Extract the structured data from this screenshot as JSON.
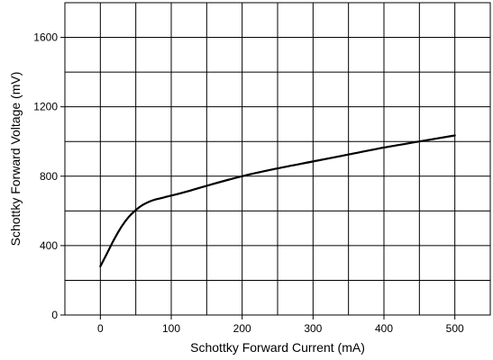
{
  "chart_data": {
    "type": "line",
    "title": "",
    "xlabel": "Schottky Forward Current (mA)",
    "ylabel": "Schottky Forward Voltage (mV)",
    "xlim": [
      -50,
      550
    ],
    "ylim": [
      0,
      1800
    ],
    "xticks": [
      0,
      100,
      200,
      300,
      400,
      500
    ],
    "yticks": [
      0,
      400,
      800,
      1200,
      1600
    ],
    "x_gridlines": [
      -50,
      0,
      50,
      100,
      150,
      200,
      250,
      300,
      350,
      400,
      450,
      500,
      550
    ],
    "y_gridlines": [
      0,
      200,
      400,
      600,
      800,
      1000,
      1200,
      1400,
      1600,
      1800
    ],
    "grid": true,
    "legend": "none",
    "line_color": "#000000",
    "series": [
      {
        "x": [
          0,
          10,
          20,
          30,
          40,
          50,
          60,
          70,
          80,
          100,
          125,
          150,
          200,
          250,
          300,
          350,
          400,
          450,
          500
        ],
        "y": [
          280,
          360,
          440,
          510,
          565,
          605,
          635,
          655,
          668,
          688,
          715,
          745,
          800,
          845,
          885,
          925,
          965,
          1000,
          1035
        ]
      }
    ]
  }
}
